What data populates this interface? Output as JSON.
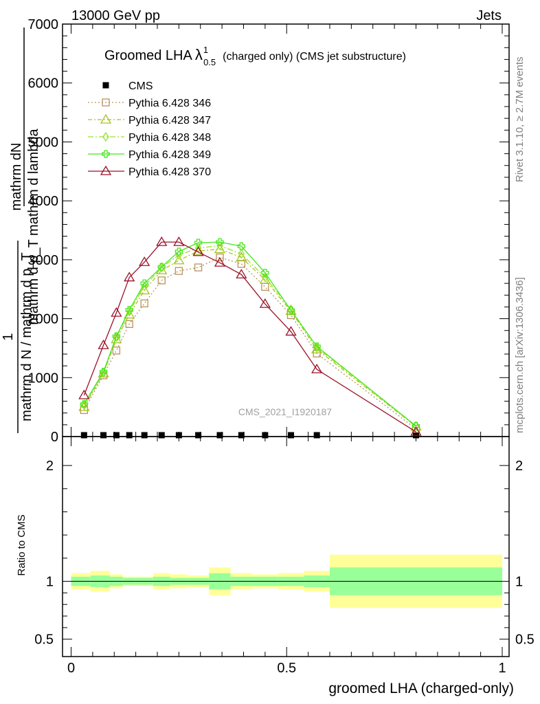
{
  "header": {
    "left": "13000 GeV pp",
    "right": "Jets"
  },
  "title": {
    "main": "Groomed LHA",
    "lambda": "λ",
    "sup": "1",
    "sub": "0.5",
    "rest": "(charged only) (CMS jet substructure)"
  },
  "side_labels": {
    "rivet": "Rivet 3.1.10, ≥ 2.7M events",
    "mcplots": "mcplots.cern.ch [arXiv:1306.3436]"
  },
  "watermark": "CMS_2021_I1920187",
  "chart_data": {
    "type": "line",
    "xlabel": "groomed LHA (charged-only)",
    "ylabel": {
      "numerator": "1",
      "denominator": "mathrm d N / mathrm d p_T",
      "right_num": "mathrm d^2N",
      "right_den": "mathrm d p_T mathrm d lambda",
      "raw_lines": [
        "mathrm dN",
        "mathrm d p_T mathrm d lambda",
        "1",
        "mathrm d N / mathrm d p_T"
      ]
    },
    "xlim": [
      -0.03,
      1.02
    ],
    "ylim": [
      0,
      7000
    ],
    "x_ticks": [
      0,
      0.5,
      1
    ],
    "x_tick_labels": [
      "0",
      "0.5",
      "1"
    ],
    "y_ticks": [
      0,
      1000,
      2000,
      3000,
      4000,
      5000,
      6000,
      7000
    ],
    "y_tick_labels": [
      "0",
      "1000",
      "2000",
      "3000",
      "4000",
      "5000",
      "6000",
      "7000"
    ],
    "legend_position": "top-left",
    "series": [
      {
        "name": "CMS",
        "color": "#000000",
        "marker": "filled-square",
        "x": [
          0.03,
          0.075,
          0.105,
          0.135,
          0.17,
          0.21,
          0.25,
          0.295,
          0.345,
          0.395,
          0.45,
          0.51,
          0.57,
          0.8
        ],
        "y": [
          0,
          0,
          0,
          0,
          0,
          0,
          0,
          0,
          0,
          0,
          0,
          0,
          0,
          0
        ]
      },
      {
        "name": "Pythia 6.428 346",
        "color": "#b8925a",
        "marker": "open-square",
        "dash": "2,3",
        "x": [
          0.03,
          0.075,
          0.105,
          0.135,
          0.17,
          0.21,
          0.25,
          0.295,
          0.345,
          0.395,
          0.45,
          0.51,
          0.57,
          0.8
        ],
        "y": [
          450,
          1040,
          1460,
          1910,
          2260,
          2650,
          2810,
          2870,
          3040,
          2930,
          2540,
          2060,
          1410,
          130
        ]
      },
      {
        "name": "Pythia 6.428 347",
        "color": "#a8c420",
        "marker": "open-triangle",
        "dash": "6,3,2,3",
        "x": [
          0.03,
          0.075,
          0.105,
          0.135,
          0.17,
          0.21,
          0.25,
          0.295,
          0.345,
          0.395,
          0.45,
          0.51,
          0.57,
          0.8
        ],
        "y": [
          500,
          1070,
          1650,
          2070,
          2480,
          2820,
          2990,
          3150,
          3180,
          3040,
          2660,
          2130,
          1480,
          170
        ]
      },
      {
        "name": "Pythia 6.428 348",
        "color": "#99e02e",
        "marker": "open-diamond",
        "dash": "8,3,2,3",
        "x": [
          0.03,
          0.075,
          0.105,
          0.135,
          0.17,
          0.21,
          0.25,
          0.295,
          0.345,
          0.395,
          0.45,
          0.51,
          0.57,
          0.8
        ],
        "y": [
          540,
          1080,
          1690,
          2120,
          2550,
          2870,
          3080,
          3200,
          3240,
          3100,
          2700,
          2160,
          1510,
          180
        ]
      },
      {
        "name": "Pythia 6.428 349",
        "color": "#44e81a",
        "marker": "open-cross",
        "dash": "",
        "x": [
          0.03,
          0.075,
          0.105,
          0.135,
          0.17,
          0.21,
          0.25,
          0.295,
          0.345,
          0.395,
          0.45,
          0.51,
          0.57,
          0.8
        ],
        "y": [
          550,
          1100,
          1700,
          2150,
          2600,
          2880,
          3140,
          3290,
          3300,
          3230,
          2780,
          2140,
          1530,
          180
        ]
      },
      {
        "name": "Pythia 6.428 370",
        "color": "#9b1128",
        "marker": "open-triangle",
        "dash": "",
        "x": [
          0.03,
          0.075,
          0.105,
          0.135,
          0.17,
          0.21,
          0.25,
          0.295,
          0.345,
          0.395,
          0.45,
          0.51,
          0.57,
          0.8
        ],
        "y": [
          700,
          1550,
          2100,
          2700,
          2960,
          3300,
          3300,
          3130,
          2950,
          2750,
          2250,
          1780,
          1140,
          80
        ]
      }
    ],
    "ratio": {
      "ylabel": "Ratio to CMS",
      "ylim": [
        0.35,
        2.25
      ],
      "y_ticks": [
        0.5,
        1,
        2
      ],
      "y_tick_labels": [
        "0.5",
        "1",
        "2"
      ],
      "colors": {
        "inner": "#99ff99",
        "outer": "#ffff99",
        "line": "#000000"
      },
      "bins": [
        {
          "x0": 0.0,
          "x1": 0.045,
          "inner": 0.04,
          "outer": 0.07
        },
        {
          "x0": 0.045,
          "x1": 0.09,
          "inner": 0.05,
          "outer": 0.09
        },
        {
          "x0": 0.09,
          "x1": 0.12,
          "inner": 0.04,
          "outer": 0.06
        },
        {
          "x0": 0.12,
          "x1": 0.15,
          "inner": 0.03,
          "outer": 0.04
        },
        {
          "x0": 0.15,
          "x1": 0.19,
          "inner": 0.03,
          "outer": 0.04
        },
        {
          "x0": 0.19,
          "x1": 0.23,
          "inner": 0.04,
          "outer": 0.07
        },
        {
          "x0": 0.23,
          "x1": 0.27,
          "inner": 0.03,
          "outer": 0.06
        },
        {
          "x0": 0.27,
          "x1": 0.32,
          "inner": 0.03,
          "outer": 0.05
        },
        {
          "x0": 0.32,
          "x1": 0.37,
          "inner": 0.07,
          "outer": 0.12
        },
        {
          "x0": 0.37,
          "x1": 0.42,
          "inner": 0.04,
          "outer": 0.07
        },
        {
          "x0": 0.42,
          "x1": 0.48,
          "inner": 0.04,
          "outer": 0.06
        },
        {
          "x0": 0.48,
          "x1": 0.54,
          "inner": 0.04,
          "outer": 0.07
        },
        {
          "x0": 0.54,
          "x1": 0.6,
          "inner": 0.05,
          "outer": 0.09
        },
        {
          "x0": 0.6,
          "x1": 1.0,
          "inner": 0.12,
          "outer": 0.23
        }
      ]
    }
  }
}
